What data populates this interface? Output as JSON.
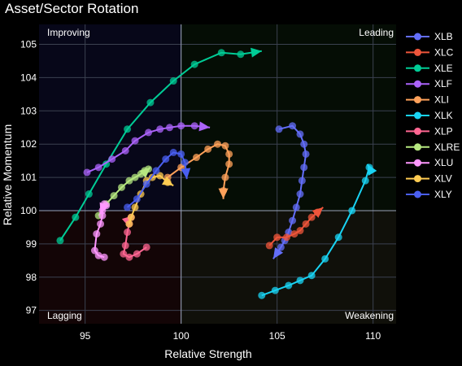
{
  "chart_data": {
    "type": "scatter",
    "title": "Asset/Sector Rotation",
    "xlabel": "Relative Strength",
    "ylabel": "Relative Momentum",
    "xlim": [
      92.6,
      111.2
    ],
    "ylim": [
      96.6,
      105.6
    ],
    "xticks": [
      95,
      100,
      105,
      110
    ],
    "yticks": [
      97,
      98,
      99,
      100,
      101,
      102,
      103,
      104,
      105
    ],
    "grid": true,
    "legend_position": "right",
    "quadrants": {
      "top_left": "Improving",
      "top_right": "Leading",
      "bottom_left": "Lagging",
      "bottom_right": "Weakening"
    },
    "series": [
      {
        "name": "XLB",
        "color": "#636efa",
        "x": [
          105.1,
          105.8,
          106.2,
          106.4,
          106.5,
          106.4,
          106.3,
          106.2,
          106.0,
          105.8,
          105.6,
          105.4,
          105.2,
          104.8
        ],
        "y": [
          102.45,
          102.55,
          102.3,
          102.0,
          101.7,
          101.3,
          100.9,
          100.5,
          100.1,
          99.7,
          99.35,
          99.1,
          98.9,
          98.55
        ]
      },
      {
        "name": "XLC",
        "color": "#ef553b",
        "x": [
          104.6,
          105.0,
          105.5,
          105.9,
          106.2,
          106.5,
          106.8,
          107.1,
          107.4
        ],
        "y": [
          98.95,
          99.2,
          99.2,
          99.3,
          99.4,
          99.6,
          99.8,
          99.95,
          100.1
        ]
      },
      {
        "name": "XLE",
        "color": "#00cc96",
        "x": [
          93.7,
          94.5,
          95.2,
          96.1,
          97.2,
          98.4,
          99.6,
          100.7,
          102.1,
          103.1,
          104.2
        ],
        "y": [
          99.1,
          99.8,
          100.5,
          101.4,
          102.45,
          103.25,
          103.9,
          104.4,
          104.75,
          104.7,
          104.8
        ]
      },
      {
        "name": "XLF",
        "color": "#ab63fa",
        "x": [
          95.1,
          95.7,
          96.4,
          97.1,
          97.6,
          98.3,
          98.9,
          99.4,
          100.0,
          100.7,
          101.5
        ],
        "y": [
          101.15,
          101.3,
          101.55,
          101.8,
          102.1,
          102.35,
          102.45,
          102.5,
          102.55,
          102.55,
          102.5
        ]
      },
      {
        "name": "XLI",
        "color": "#ffa15a",
        "x": [
          99.3,
          100.0,
          100.8,
          101.4,
          101.9,
          102.3,
          102.5,
          102.5,
          102.3,
          102.2,
          102.2
        ],
        "y": [
          101.0,
          101.3,
          101.6,
          101.85,
          102.0,
          101.95,
          101.7,
          101.4,
          101.0,
          100.6,
          100.35
        ]
      },
      {
        "name": "XLK",
        "color": "#19d3f3",
        "x": [
          104.2,
          104.9,
          105.6,
          106.2,
          106.8,
          107.5,
          108.2,
          108.9,
          109.6,
          109.8,
          109.7
        ],
        "y": [
          97.45,
          97.6,
          97.75,
          97.9,
          98.05,
          98.55,
          99.2,
          100.0,
          100.9,
          101.3,
          101.4
        ]
      },
      {
        "name": "XLP",
        "color": "#ff6692",
        "x": [
          98.2,
          97.7,
          97.3,
          97.0,
          97.1,
          97.2,
          97.3,
          97.4,
          97.5
        ],
        "y": [
          98.9,
          98.7,
          98.6,
          98.7,
          98.95,
          99.35,
          99.6,
          99.8,
          99.85
        ]
      },
      {
        "name": "XLRE",
        "color": "#b6e880",
        "x": [
          95.7,
          96.1,
          96.5,
          96.9,
          97.3,
          97.6,
          97.9,
          98.1,
          98.3,
          98.4
        ],
        "y": [
          99.85,
          100.2,
          100.45,
          100.7,
          100.9,
          101.0,
          101.1,
          101.2,
          101.25,
          101.3
        ]
      },
      {
        "name": "XLU",
        "color": "#ff97ff",
        "x": [
          96.0,
          95.7,
          95.5,
          95.6,
          95.8,
          95.9,
          95.9,
          96.1,
          96.0,
          95.8
        ],
        "y": [
          98.6,
          98.65,
          98.8,
          99.3,
          99.6,
          99.85,
          100.0,
          100.15,
          100.2,
          99.9
        ]
      },
      {
        "name": "XLV",
        "color": "#fecb52",
        "x": [
          97.3,
          97.4,
          97.6,
          97.9,
          98.2,
          98.5,
          98.9,
          99.3,
          99.6
        ],
        "y": [
          99.6,
          99.8,
          100.1,
          100.5,
          100.9,
          101.0,
          101.05,
          100.85,
          100.75
        ]
      },
      {
        "name": "XLY",
        "color": "#4a5ff0",
        "x": [
          97.2,
          97.7,
          98.2,
          98.7,
          99.2,
          99.6,
          100.0,
          100.2,
          100.3
        ],
        "y": [
          100.1,
          100.35,
          100.8,
          101.2,
          101.55,
          101.75,
          101.7,
          101.45,
          100.95
        ]
      }
    ]
  }
}
